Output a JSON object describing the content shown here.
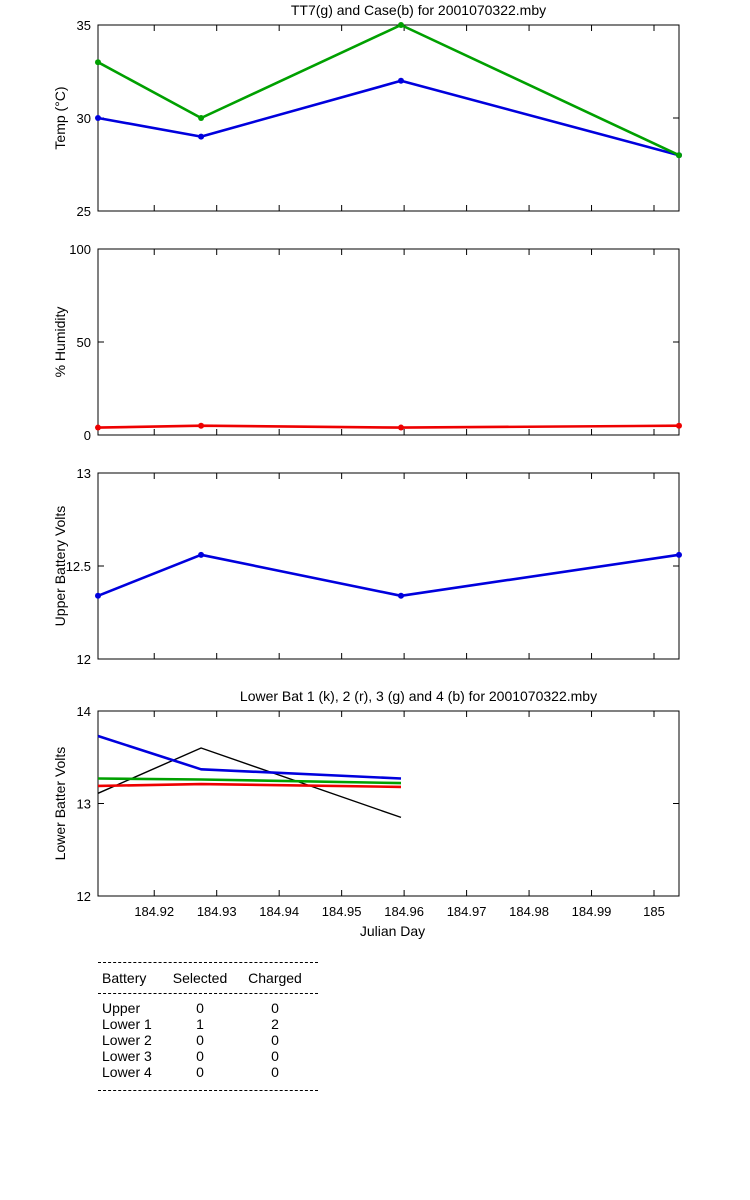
{
  "chart_data": [
    {
      "type": "line",
      "title": "TT7(g) and Case(b) for 2001070322.mby",
      "xlabel": "",
      "ylabel": "Temp  (°C)",
      "xlim": [
        184.911,
        185.004
      ],
      "ylim": [
        25,
        35
      ],
      "yticks": [
        "25",
        "30",
        "35"
      ],
      "x": [
        184.911,
        184.9275,
        184.9595,
        185.004
      ],
      "series": [
        {
          "color": "#0000dd",
          "values": [
            30,
            29,
            32,
            28
          ]
        },
        {
          "color": "#00a000",
          "values": [
            33,
            30,
            35,
            28
          ]
        }
      ],
      "grid": false
    },
    {
      "type": "line",
      "title": "",
      "xlabel": "",
      "ylabel": "% Humidity",
      "xlim": [
        184.911,
        185.004
      ],
      "ylim": [
        0,
        100
      ],
      "yticks": [
        "0",
        "50",
        "100"
      ],
      "x": [
        184.911,
        184.9275,
        184.9595,
        185.004
      ],
      "series": [
        {
          "color": "#ee0000",
          "values": [
            4,
            5,
            4,
            5
          ]
        }
      ],
      "grid": false
    },
    {
      "type": "line",
      "title": "",
      "xlabel": "",
      "ylabel": "Upper Battery Volts",
      "xlim": [
        184.911,
        185.004
      ],
      "ylim": [
        12,
        13
      ],
      "yticks": [
        "12",
        "12.5",
        "13"
      ],
      "x": [
        184.911,
        184.9275,
        184.9595,
        185.004
      ],
      "series": [
        {
          "color": "#0000dd",
          "values": [
            12.34,
            12.56,
            12.34,
            12.56
          ]
        }
      ],
      "grid": false
    },
    {
      "type": "line",
      "title": "Lower Bat 1 (k), 2 (r), 3 (g) and 4 (b) for 2001070322.mby",
      "xlabel": "Julian Day",
      "ylabel": "Lower Batter Volts",
      "xlim": [
        184.911,
        185.004
      ],
      "ylim": [
        12,
        14
      ],
      "yticks": [
        "12",
        "13",
        "14"
      ],
      "xticks": [
        "184.92",
        "184.93",
        "184.94",
        "184.95",
        "184.96",
        "184.97",
        "184.98",
        "184.99",
        "185"
      ],
      "x": [
        184.911,
        184.9275,
        184.9595
      ],
      "series": [
        {
          "color": "#000000",
          "values": [
            13.11,
            13.6,
            12.85
          ]
        },
        {
          "color": "#ee0000",
          "values": [
            13.19,
            13.21,
            13.18
          ]
        },
        {
          "color": "#00a000",
          "values": [
            13.27,
            13.26,
            13.22
          ]
        },
        {
          "color": "#0000dd",
          "values": [
            13.73,
            13.37,
            13.27
          ]
        }
      ],
      "grid": false
    }
  ],
  "xtick_values": [
    184.92,
    184.93,
    184.94,
    184.95,
    184.96,
    184.97,
    184.98,
    184.99,
    185.0
  ],
  "battery_table": {
    "headers": [
      "Battery",
      "Selected",
      "Charged"
    ],
    "rows": [
      [
        "Upper",
        "0",
        "0"
      ],
      [
        "Lower 1",
        "1",
        "2"
      ],
      [
        "Lower 2",
        "0",
        "0"
      ],
      [
        "Lower 3",
        "0",
        "0"
      ],
      [
        "Lower 4",
        "0",
        "0"
      ]
    ]
  }
}
